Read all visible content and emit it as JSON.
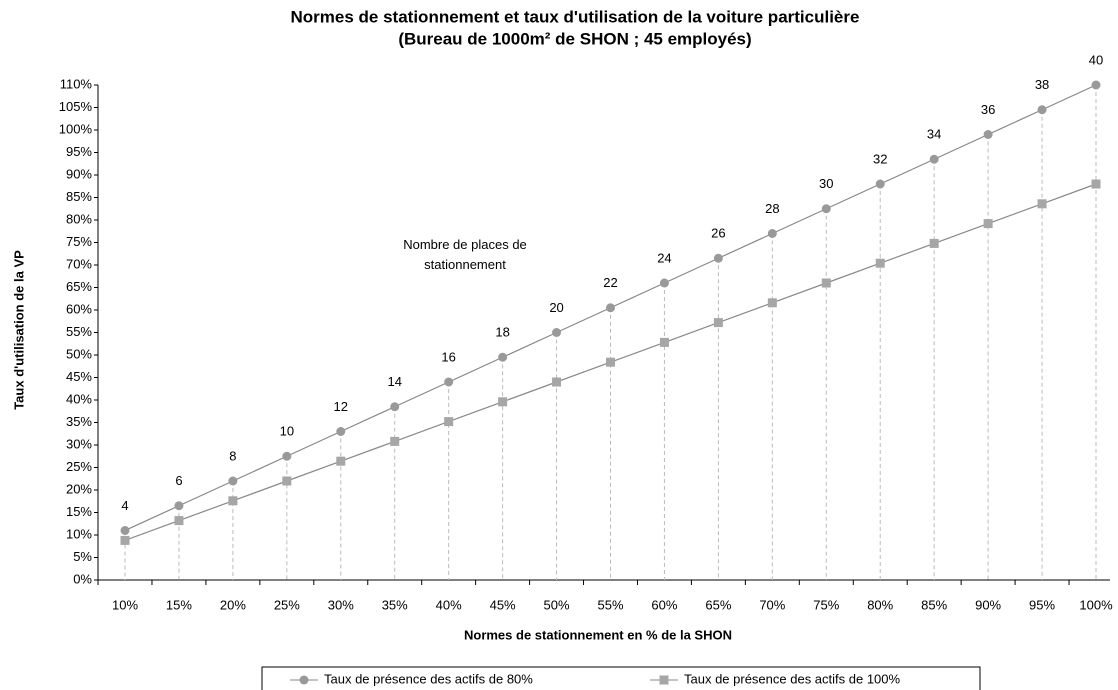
{
  "chart_data": {
    "type": "line",
    "title": "Normes de stationnement et taux d'utilisation de la voiture particulière",
    "subtitle": "(Bureau de 1000m² de SHON ; 45 employés)",
    "x_label": "Normes de stationnement en % de la SHON",
    "y_label": "Taux d'utilisation de la VP",
    "categories": [
      "10%",
      "15%",
      "20%",
      "25%",
      "30%",
      "35%",
      "40%",
      "45%",
      "50%",
      "55%",
      "60%",
      "65%",
      "70%",
      "75%",
      "80%",
      "85%",
      "90%",
      "95%",
      "100%"
    ],
    "series": [
      {
        "name": "Taux de présence des actifs de 80%",
        "color": "#999999",
        "marker": "circle",
        "values": [
          11,
          16.5,
          22,
          27.5,
          33,
          38.5,
          44,
          49.5,
          55,
          60.5,
          66,
          71.5,
          77,
          82.5,
          88,
          93.5,
          99,
          104.5,
          110
        ]
      },
      {
        "name": "Taux de présence des actifs de 100%",
        "color": "#a6a6a6",
        "marker": "square",
        "values": [
          8.8,
          13.2,
          17.6,
          22,
          26.4,
          30.8,
          35.2,
          39.6,
          44,
          48.4,
          52.8,
          57.2,
          61.6,
          66,
          70.4,
          74.8,
          79.2,
          83.6,
          88
        ]
      }
    ],
    "annotation": {
      "text": "Nombre de places de stationnement",
      "labels": [
        4,
        6,
        8,
        10,
        12,
        14,
        16,
        18,
        20,
        22,
        24,
        26,
        28,
        30,
        32,
        34,
        36,
        38,
        40
      ]
    },
    "ylim": [
      0,
      110
    ],
    "yticks": [
      {
        "value": 0,
        "label": "0%"
      },
      {
        "value": 5,
        "label": "5%"
      },
      {
        "value": 10,
        "label": "10%"
      },
      {
        "value": 15,
        "label": "15%"
      },
      {
        "value": 20,
        "label": "20%"
      },
      {
        "value": 25,
        "label": "25%"
      },
      {
        "value": 30,
        "label": "30%"
      },
      {
        "value": 35,
        "label": "35%"
      },
      {
        "value": 40,
        "label": "40%"
      },
      {
        "value": 45,
        "label": "45%"
      },
      {
        "value": 50,
        "label": "50%"
      },
      {
        "value": 55,
        "label": "55%"
      },
      {
        "value": 60,
        "label": "60%"
      },
      {
        "value": 65,
        "label": "65%"
      },
      {
        "value": 70,
        "label": "70%"
      },
      {
        "value": 75,
        "label": "75%"
      },
      {
        "value": 80,
        "label": "80%"
      },
      {
        "value": 85,
        "label": "85%"
      },
      {
        "value": 90,
        "label": "90%"
      },
      {
        "value": 95,
        "label": "95%"
      },
      {
        "value": 100,
        "label": "100%"
      },
      {
        "value": 105,
        "label": "105%"
      },
      {
        "value": 110,
        "label": "110%"
      }
    ],
    "grid": false,
    "legend": "bottom"
  }
}
